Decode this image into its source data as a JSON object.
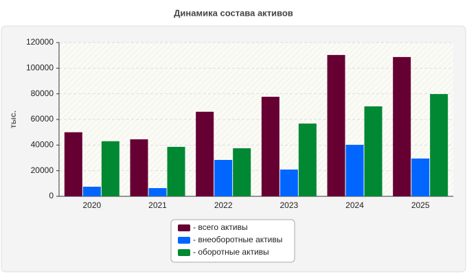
{
  "chart_data": {
    "type": "bar",
    "title": "Динамика состава активов",
    "y_label": "тыс.",
    "categories": [
      "2020",
      "2021",
      "2022",
      "2023",
      "2024",
      "2025"
    ],
    "series": [
      {
        "name": "- всего активы",
        "color": "#660033",
        "values": [
          50000,
          44500,
          66000,
          77700,
          110300,
          108700
        ]
      },
      {
        "name": "- внеоборотные активы",
        "color": "#0066ff",
        "values": [
          7500,
          6400,
          28400,
          20900,
          40200,
          29500
        ]
      },
      {
        "name": "- оборотные активы",
        "color": "#008833",
        "values": [
          43000,
          38600,
          37500,
          56800,
          70200,
          79800
        ]
      }
    ],
    "ylim": [
      0,
      120000
    ],
    "yticks": [
      0,
      20000,
      40000,
      60000,
      80000,
      100000,
      120000
    ],
    "grid": true
  }
}
